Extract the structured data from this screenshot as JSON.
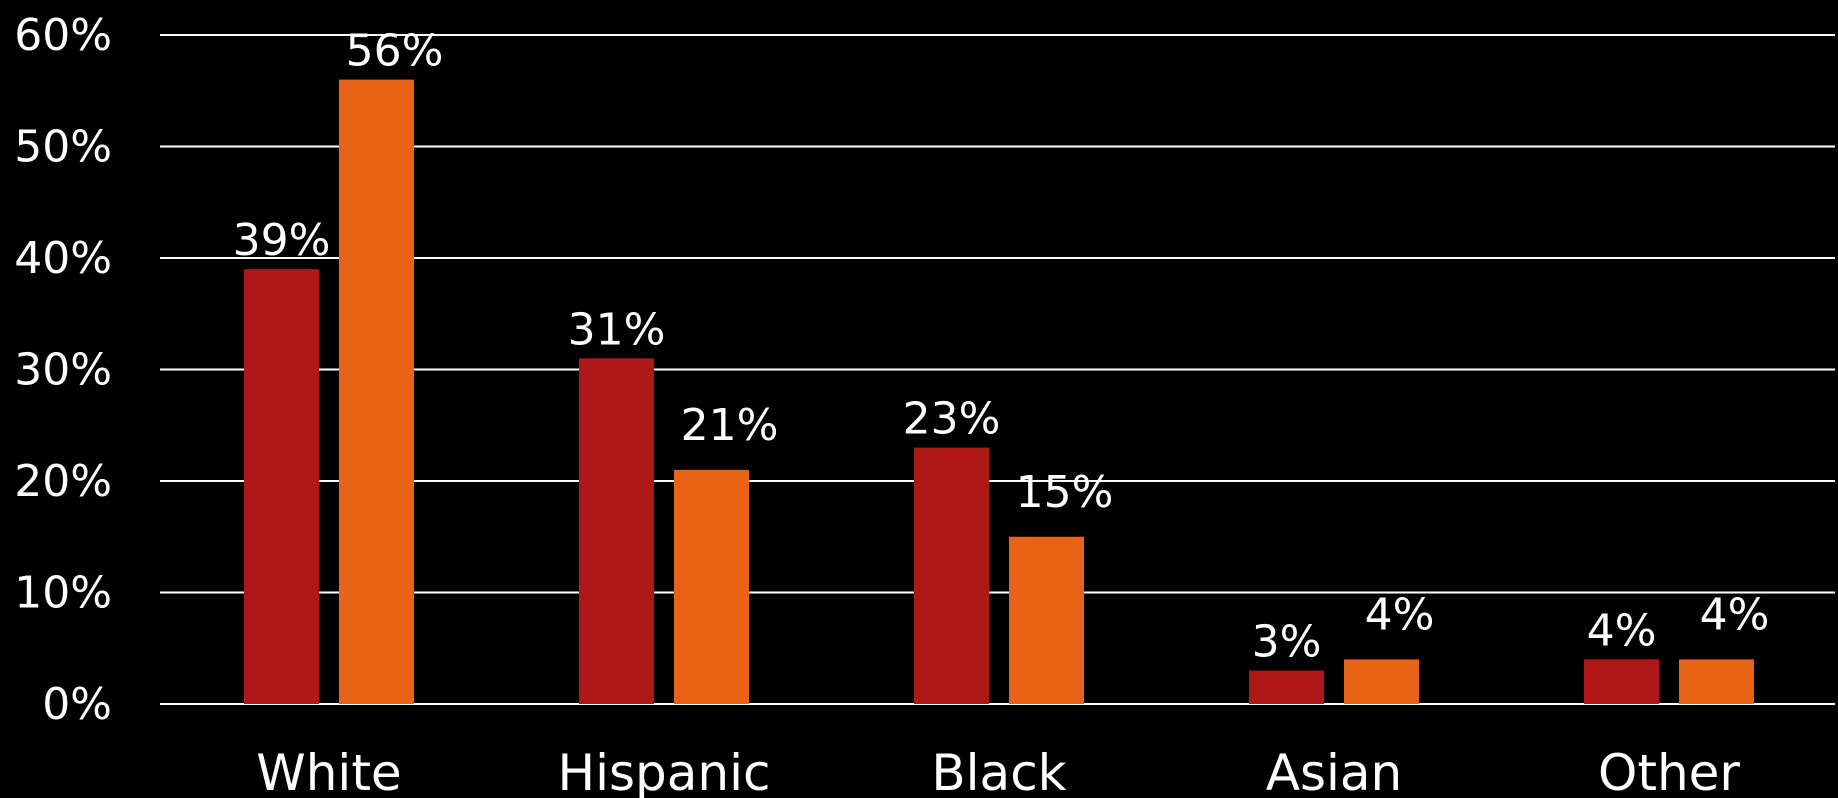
{
  "chart_data": {
    "type": "bar",
    "categories": [
      "White",
      "Hispanic",
      "Black",
      "Asian",
      "Other"
    ],
    "series": [
      {
        "values": [
          39,
          31,
          23,
          3,
          4
        ],
        "labels": [
          "39%",
          "31%",
          "23%",
          "3%",
          "4%"
        ],
        "color": "#B01717"
      },
      {
        "values": [
          56,
          21,
          15,
          4,
          4
        ],
        "labels": [
          "56%",
          "21%",
          "15%",
          "4%",
          "4%"
        ],
        "color": "#E86315"
      }
    ],
    "ylim": [
      0,
      60
    ],
    "yticks": [
      0,
      10,
      20,
      30,
      40,
      50,
      60
    ],
    "ytick_labels": [
      "0%",
      "10%",
      "20%",
      "30%",
      "40%",
      "50%",
      "60%"
    ],
    "grid": true,
    "title": "",
    "xlabel": "",
    "ylabel": "",
    "legend": "none"
  },
  "colors": {
    "background": "#000000",
    "gridline": "#ffffff",
    "text": "#ffffff"
  }
}
